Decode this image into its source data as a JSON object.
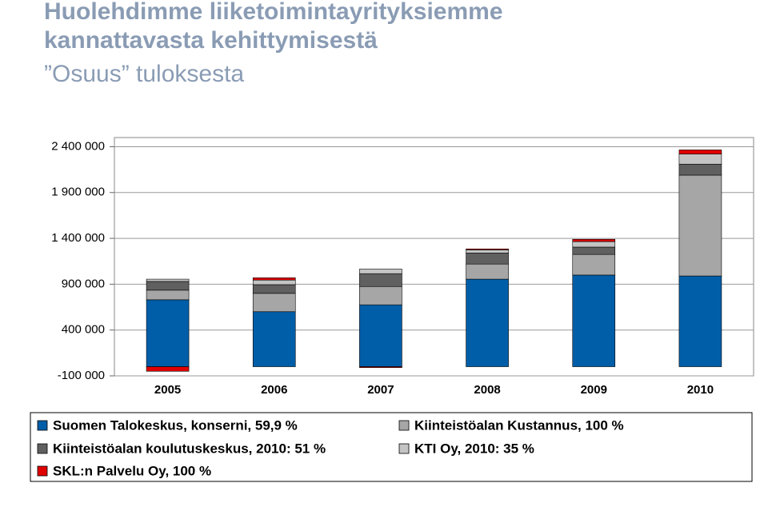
{
  "chart_data": {
    "type": "stacked_bar",
    "title": [
      "Huolehdimme liiketoimintayrityksiemme",
      "kannattavasta kehittymisestä"
    ],
    "subtitle": "”Osuus” tuloksesta",
    "categories": [
      "2005",
      "2006",
      "2007",
      "2008",
      "2009",
      "2010"
    ],
    "series": [
      {
        "name": "Suomen Talokeskus, konserni, 59,9 %",
        "color": "#005ea8",
        "values": [
          730000,
          600000,
          675000,
          955000,
          1000000,
          990000
        ]
      },
      {
        "name": "Kiinteistöalan Kustannus, 100 %",
        "color": "#a6a6a6",
        "values": [
          105000,
          200000,
          200000,
          165000,
          225000,
          1100000
        ]
      },
      {
        "name": "Kiinteistöalan koulutuskeskus, 2010: 51 %",
        "color": "#606060",
        "values": [
          95000,
          95000,
          140000,
          120000,
          80000,
          120000
        ]
      },
      {
        "name": "KTI Oy, 2010: 35 %",
        "color": "#c4c4c4",
        "values": [
          25000,
          50000,
          50000,
          35000,
          60000,
          110000
        ]
      },
      {
        "name": "SKL:n Palvelu Oy, 100 %",
        "color": "#e00000",
        "values": [
          -50000,
          25000,
          -10000,
          10000,
          25000,
          45000
        ]
      }
    ],
    "ylim": [
      -100000,
      2500000
    ],
    "yticks": [
      {
        "value": -100000,
        "label": "-100 000"
      },
      {
        "value": 400000,
        "label": "400 000"
      },
      {
        "value": 900000,
        "label": "900 000"
      },
      {
        "value": 1400000,
        "label": "1 400 000"
      },
      {
        "value": 1900000,
        "label": "1 900 000"
      },
      {
        "value": 2400000,
        "label": "2 400 000"
      }
    ],
    "grid": true
  }
}
